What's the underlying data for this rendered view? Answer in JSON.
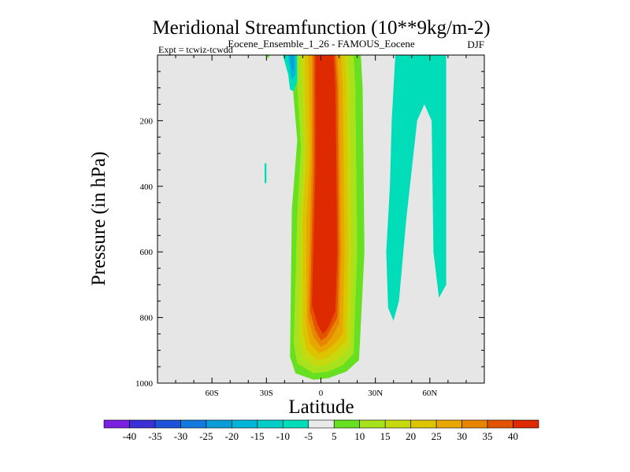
{
  "chart_data": {
    "type": "contour",
    "title": "Meridional Streamfunction (10**9kg/m-2)",
    "subtitle": "Eocene_Ensemble_1_26 - FAMOUS_Eocene",
    "left_label": "Expt = tcwiz-tcwdd",
    "right_label": "DJF",
    "xlabel": "Latitude",
    "ylabel": "Pressure (in hPa)",
    "xlim": [
      -90,
      90
    ],
    "ylim": [
      1000,
      0
    ],
    "y_inverted": true,
    "x_ticks": [
      {
        "value": -60,
        "label": "60S"
      },
      {
        "value": -30,
        "label": "30S"
      },
      {
        "value": 0,
        "label": "0"
      },
      {
        "value": 30,
        "label": "30N"
      },
      {
        "value": 60,
        "label": "60N"
      }
    ],
    "y_ticks": [
      {
        "value": 200,
        "label": "200"
      },
      {
        "value": 400,
        "label": "400"
      },
      {
        "value": 600,
        "label": "600"
      },
      {
        "value": 800,
        "label": "800"
      },
      {
        "value": 1000,
        "label": "1000"
      }
    ],
    "background_color": "#e6e6e6",
    "colorbar": {
      "labels": [
        "-40",
        "-35",
        "-30",
        "-25",
        "-20",
        "-15",
        "-10",
        "-5",
        "5",
        "10",
        "15",
        "20",
        "25",
        "30",
        "35",
        "40"
      ],
      "colors": [
        "#7a1ee0",
        "#3b2fd6",
        "#1d53d8",
        "#1479dd",
        "#0b9bd8",
        "#00b6d6",
        "#00cdc8",
        "#00ddb8",
        "#eaeaea",
        "#66e020",
        "#a8e21c",
        "#c6d80e",
        "#ddc400",
        "#e8a600",
        "#e88400",
        "#e45400",
        "#dd2a00"
      ]
    },
    "regions": [
      {
        "value": 5,
        "color": "#66e020",
        "poly": [
          [
            -17,
            0
          ],
          [
            -13,
            260
          ],
          [
            -16,
            470
          ],
          [
            -17,
            920
          ],
          [
            -14,
            970
          ],
          [
            -4,
            990
          ],
          [
            4,
            985
          ],
          [
            14,
            965
          ],
          [
            21,
            930
          ],
          [
            24,
            600
          ],
          [
            23,
            100
          ],
          [
            22,
            0
          ]
        ]
      },
      {
        "value": 10,
        "color": "#a8e21c",
        "poly": [
          [
            -14,
            0
          ],
          [
            -11,
            280
          ],
          [
            -13,
            480
          ],
          [
            -15,
            880
          ],
          [
            -13,
            940
          ],
          [
            -4,
            970
          ],
          [
            4,
            965
          ],
          [
            12,
            945
          ],
          [
            18,
            910
          ],
          [
            20,
            600
          ],
          [
            19,
            100
          ],
          [
            18,
            0
          ]
        ]
      },
      {
        "value": 20,
        "color": "#c6d80e",
        "poly": [
          [
            -11,
            0
          ],
          [
            -9,
            290
          ],
          [
            -11,
            490
          ],
          [
            -12,
            860
          ],
          [
            -10,
            920
          ],
          [
            -3,
            950
          ],
          [
            3,
            945
          ],
          [
            10,
            925
          ],
          [
            16,
            890
          ],
          [
            17,
            600
          ],
          [
            16,
            100
          ],
          [
            15,
            0
          ]
        ]
      },
      {
        "value": 25,
        "color": "#ddc400",
        "poly": [
          [
            -9,
            0
          ],
          [
            -8,
            300
          ],
          [
            -10,
            500
          ],
          [
            -10,
            840
          ],
          [
            -8,
            900
          ],
          [
            -2,
            930
          ],
          [
            3,
            925
          ],
          [
            8,
            905
          ],
          [
            14,
            870
          ],
          [
            15,
            600
          ],
          [
            14,
            100
          ],
          [
            13,
            0
          ]
        ]
      },
      {
        "value": 30,
        "color": "#e8a600",
        "poly": [
          [
            -7,
            0
          ],
          [
            -6,
            310
          ],
          [
            -8,
            510
          ],
          [
            -8,
            820
          ],
          [
            -6,
            880
          ],
          [
            -1,
            910
          ],
          [
            3,
            900
          ],
          [
            7,
            885
          ],
          [
            12,
            850
          ],
          [
            13,
            600
          ],
          [
            12,
            100
          ],
          [
            11,
            0
          ]
        ]
      },
      {
        "value": 35,
        "color": "#e88400",
        "poly": [
          [
            -5,
            0
          ],
          [
            -5,
            320
          ],
          [
            -6,
            520
          ],
          [
            -7,
            800
          ],
          [
            -4,
            860
          ],
          [
            0,
            890
          ],
          [
            3,
            880
          ],
          [
            6,
            860
          ],
          [
            10,
            820
          ],
          [
            11,
            600
          ],
          [
            10,
            100
          ],
          [
            9,
            0
          ]
        ]
      },
      {
        "value": 40,
        "color": "#e45400",
        "poly": [
          [
            -4,
            0
          ],
          [
            -4,
            330
          ],
          [
            -5,
            540
          ],
          [
            -6,
            780
          ],
          [
            -3,
            840
          ],
          [
            0,
            870
          ],
          [
            3,
            860
          ],
          [
            5,
            840
          ],
          [
            9,
            800
          ],
          [
            10,
            600
          ],
          [
            9,
            100
          ],
          [
            8,
            0
          ]
        ]
      },
      {
        "value": 45,
        "color": "#dd2a00",
        "poly": [
          [
            -3,
            0
          ],
          [
            -3,
            340
          ],
          [
            -4,
            560
          ],
          [
            -5,
            760
          ],
          [
            -2,
            820
          ],
          [
            1,
            850
          ],
          [
            3,
            840
          ],
          [
            5,
            820
          ],
          [
            8,
            780
          ],
          [
            9,
            600
          ],
          [
            8,
            100
          ],
          [
            7,
            0
          ]
        ]
      },
      {
        "value": -5,
        "color": "#00ddb8",
        "poly": [
          [
            42,
            0
          ],
          [
            47,
            0
          ],
          [
            52,
            0
          ],
          [
            62,
            0
          ],
          [
            69,
            0
          ],
          [
            69,
            700
          ],
          [
            65,
            740
          ],
          [
            62,
            600
          ],
          [
            61,
            200
          ],
          [
            57,
            150
          ],
          [
            53,
            200
          ],
          [
            51,
            300
          ],
          [
            47,
            500
          ],
          [
            43,
            750
          ],
          [
            40,
            810
          ],
          [
            37,
            770
          ],
          [
            36,
            600
          ],
          [
            38,
            400
          ],
          [
            39,
            200
          ],
          [
            40,
            100
          ],
          [
            41,
            0
          ]
        ]
      },
      {
        "value": -5,
        "color": "#00ddb8",
        "poly": [
          [
            -31,
            330
          ],
          [
            -30,
            330
          ],
          [
            -30,
            390
          ],
          [
            -31,
            390
          ]
        ]
      },
      {
        "value": -5,
        "color": "#00ddb8",
        "poly": [
          [
            -21,
            0
          ],
          [
            -13,
            0
          ],
          [
            -13,
            80
          ],
          [
            -15,
            110
          ],
          [
            -17,
            105
          ],
          [
            -18,
            60
          ]
        ]
      },
      {
        "value": -10,
        "color": "#00b6d6",
        "poly": [
          [
            -18,
            0
          ],
          [
            -14,
            0
          ],
          [
            -14,
            60
          ],
          [
            -16,
            75
          ],
          [
            -17,
            50
          ]
        ]
      },
      {
        "value": -15,
        "color": "#0b9bd8",
        "poly": [
          [
            -17,
            0
          ],
          [
            -15,
            0
          ],
          [
            -15,
            40
          ],
          [
            -16,
            45
          ]
        ]
      },
      {
        "value": 5,
        "color": "#66e020",
        "poly": [
          [
            -31,
            0
          ],
          [
            -28,
            0
          ],
          [
            -29,
            10
          ],
          [
            -30,
            5
          ]
        ]
      }
    ]
  }
}
